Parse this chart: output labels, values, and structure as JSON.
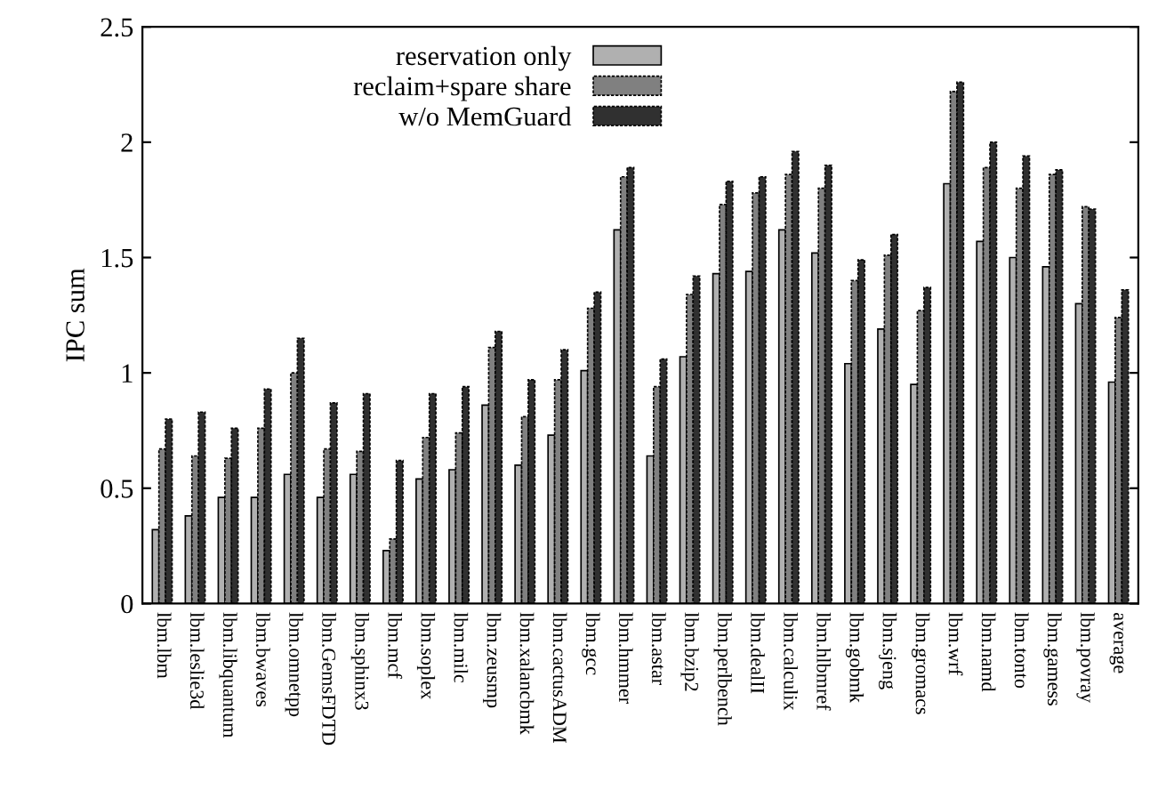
{
  "chart_data": {
    "type": "bar",
    "ylabel": "IPC sum",
    "categories": [
      "lbm.lbm",
      "lbm.leslie3d",
      "lbm.libquantum",
      "lbm.bwaves",
      "lbm.omnetpp",
      "lbm.GemsFDTD",
      "lbm.sphinx3",
      "lbm.mcf",
      "lbm.soplex",
      "lbm.milc",
      "lbm.zeusmp",
      "lbm.xalancbmk",
      "lbm.cactusADM",
      "lbm.gcc",
      "lbm.hmmer",
      "lbm.astar",
      "lbm.bzip2",
      "lbm.perlbench",
      "lbm.dealII",
      "lbm.calculix",
      "lbm.hlbmref",
      "lbm.gobmk",
      "lbm.sjeng",
      "lbm.gromacs",
      "lbm.wrf",
      "lbm.namd",
      "lbm.tonto",
      "lbm.gamess",
      "lbm.povray",
      "average"
    ],
    "series": [
      {
        "name": "reservation only",
        "color": "#b0b0b0",
        "line_style": "solid",
        "values": [
          0.32,
          0.38,
          0.46,
          0.46,
          0.56,
          0.46,
          0.56,
          0.23,
          0.54,
          0.58,
          0.86,
          0.6,
          0.73,
          1.01,
          1.62,
          0.64,
          1.07,
          1.43,
          1.44,
          1.62,
          1.52,
          1.04,
          1.19,
          0.95,
          1.82,
          1.57,
          1.5,
          1.46,
          1.3,
          0.96
        ]
      },
      {
        "name": "reclaim+spare share",
        "color": "#808080",
        "line_style": "dashed",
        "values": [
          0.67,
          0.64,
          0.63,
          0.76,
          1.0,
          0.67,
          0.66,
          0.28,
          0.72,
          0.74,
          1.11,
          0.81,
          0.97,
          1.28,
          1.85,
          0.94,
          1.34,
          1.73,
          1.78,
          1.86,
          1.8,
          1.4,
          1.51,
          1.27,
          2.22,
          1.89,
          1.8,
          1.86,
          1.72,
          1.24
        ]
      },
      {
        "name": "w/o MemGuard",
        "color": "#303030",
        "line_style": "dashed",
        "values": [
          0.8,
          0.83,
          0.76,
          0.93,
          1.15,
          0.87,
          0.91,
          0.62,
          0.91,
          0.94,
          1.18,
          0.97,
          1.1,
          1.35,
          1.89,
          1.06,
          1.42,
          1.83,
          1.85,
          1.96,
          1.9,
          1.49,
          1.6,
          1.37,
          2.26,
          2.0,
          1.94,
          1.88,
          1.71,
          1.36
        ]
      }
    ],
    "ylim": [
      0,
      2.5
    ],
    "yticks": [
      0,
      0.5,
      1,
      1.5,
      2,
      2.5
    ],
    "grid": false,
    "legend": "top"
  }
}
